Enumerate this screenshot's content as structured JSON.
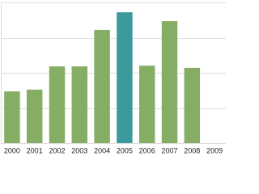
{
  "chart_data": {
    "type": "bar",
    "categories": [
      "2000",
      "2001",
      "2002",
      "2003",
      "2004",
      "2005",
      "2006",
      "2007",
      "2008",
      "2009"
    ],
    "values": [
      1.47,
      1.52,
      2.18,
      2.18,
      3.22,
      3.72,
      2.2,
      3.47,
      2.14,
      null
    ],
    "colors": [
      "#86ad64",
      "#86ad64",
      "#86ad64",
      "#86ad64",
      "#86ad64",
      "#3a9a9c",
      "#86ad64",
      "#86ad64",
      "#86ad64",
      "#86ad64"
    ],
    "ylim": [
      0,
      4
    ],
    "yticks": [
      0,
      1,
      2,
      3,
      4
    ],
    "grid": true
  }
}
